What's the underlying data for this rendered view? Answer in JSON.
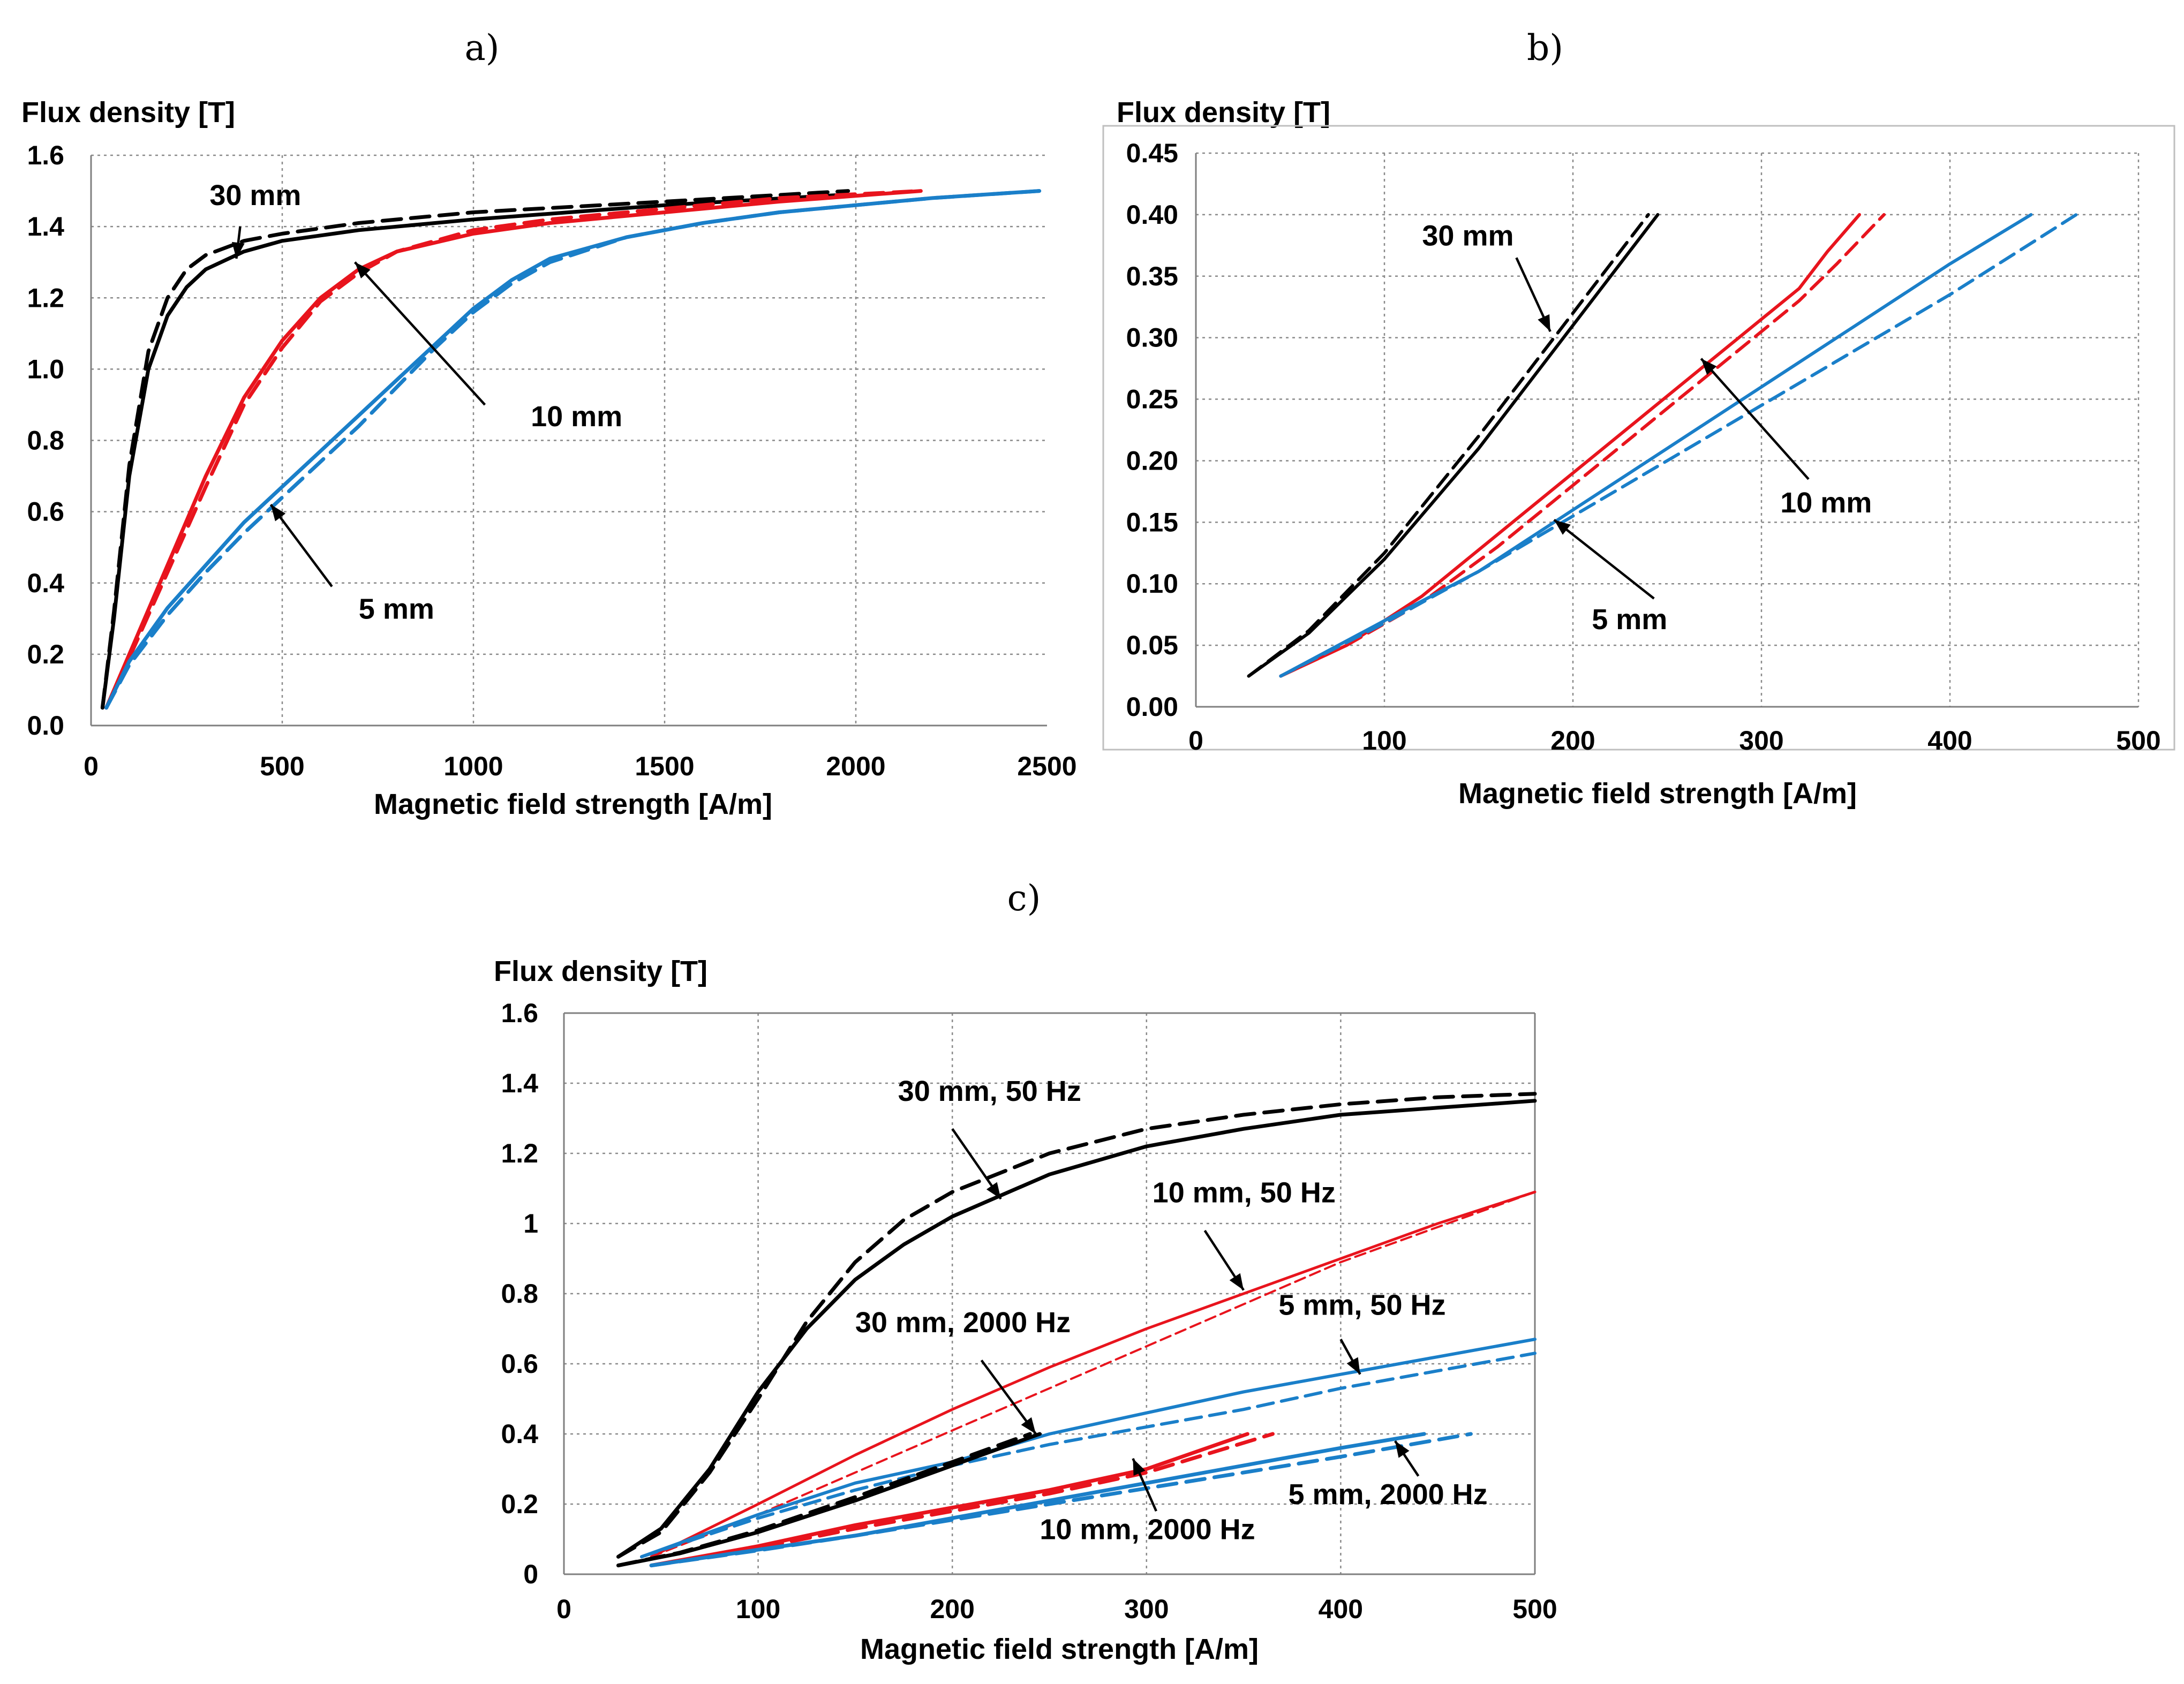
{
  "colors": {
    "black": "#000000",
    "red": "#e8141d",
    "blue": "#1a7fc9"
  },
  "panel_labels": [
    "a)",
    "b)",
    "c)"
  ],
  "chart_data": [
    {
      "type": "line",
      "panel": "a)",
      "ylabel": "Flux density [T]",
      "xlabel": "Magnetic field strength [A/m]",
      "xlim": [
        0,
        2500
      ],
      "ylim": [
        0,
        1.6
      ],
      "xticks": [
        0,
        500,
        1000,
        1500,
        2000,
        2500
      ],
      "xtick_labels": [
        "0",
        "500",
        "1000",
        "1500",
        "2000",
        "2500"
      ],
      "yticks": [
        0,
        0.2,
        0.4,
        0.6,
        0.8,
        1.0,
        1.2,
        1.4,
        1.6
      ],
      "ytick_labels": [
        "0.0",
        "0.2",
        "0.4",
        "0.6",
        "0.8",
        "1.0",
        "1.2",
        "1.4",
        "1.6"
      ],
      "grid": true,
      "series": [
        {
          "name": "30 mm solid",
          "color": "black",
          "dash": "solid",
          "width": 7,
          "x": [
            30,
            60,
            100,
            150,
            200,
            250,
            300,
            400,
            500,
            700,
            1000,
            1500,
            1980
          ],
          "y": [
            0.05,
            0.3,
            0.7,
            1.0,
            1.15,
            1.23,
            1.28,
            1.33,
            1.36,
            1.39,
            1.42,
            1.46,
            1.49
          ]
        },
        {
          "name": "30 mm dashed",
          "color": "black",
          "dash": "dashed",
          "width": 7,
          "x": [
            30,
            60,
            100,
            150,
            200,
            250,
            300,
            400,
            500,
            700,
            1000,
            1500,
            1980
          ],
          "y": [
            0.05,
            0.32,
            0.73,
            1.05,
            1.2,
            1.28,
            1.32,
            1.36,
            1.38,
            1.41,
            1.44,
            1.47,
            1.5
          ]
        },
        {
          "name": "10 mm solid",
          "color": "red",
          "dash": "solid",
          "width": 7,
          "x": [
            40,
            100,
            200,
            300,
            400,
            500,
            600,
            700,
            800,
            1000,
            1200,
            1500,
            1800,
            2170
          ],
          "y": [
            0.05,
            0.2,
            0.45,
            0.7,
            0.92,
            1.08,
            1.2,
            1.28,
            1.33,
            1.38,
            1.41,
            1.44,
            1.47,
            1.5
          ]
        },
        {
          "name": "10 mm dashed",
          "color": "red",
          "dash": "dashed",
          "width": 7,
          "x": [
            40,
            100,
            200,
            300,
            400,
            500,
            600,
            700,
            800,
            1000,
            1200,
            1500,
            1800,
            2170
          ],
          "y": [
            0.05,
            0.19,
            0.43,
            0.67,
            0.9,
            1.06,
            1.19,
            1.27,
            1.33,
            1.39,
            1.42,
            1.45,
            1.48,
            1.5
          ]
        },
        {
          "name": "5 mm solid",
          "color": "blue",
          "dash": "solid",
          "width": 7,
          "x": [
            40,
            100,
            200,
            300,
            400,
            500,
            600,
            700,
            800,
            900,
            1000,
            1100,
            1200,
            1400,
            1600,
            1800,
            2000,
            2200,
            2480
          ],
          "y": [
            0.05,
            0.18,
            0.33,
            0.45,
            0.57,
            0.67,
            0.77,
            0.87,
            0.97,
            1.07,
            1.17,
            1.25,
            1.31,
            1.37,
            1.41,
            1.44,
            1.46,
            1.48,
            1.5
          ]
        },
        {
          "name": "5 mm dashed",
          "color": "blue",
          "dash": "dashed",
          "width": 7,
          "x": [
            40,
            100,
            200,
            300,
            400,
            500,
            600,
            700,
            800,
            900,
            1000,
            1100,
            1200,
            1400,
            1600,
            1800,
            2000,
            2200,
            2480
          ],
          "y": [
            0.05,
            0.17,
            0.31,
            0.43,
            0.54,
            0.64,
            0.74,
            0.84,
            0.95,
            1.06,
            1.16,
            1.24,
            1.3,
            1.37,
            1.41,
            1.44,
            1.46,
            1.48,
            1.5
          ]
        }
      ],
      "annotations": [
        {
          "text": "30 mm",
          "label_x": 310,
          "label_y": 1.46,
          "arrow_from": [
            390,
            1.4
          ],
          "arrow_to": [
            380,
            1.31
          ]
        },
        {
          "text": "10 mm",
          "label_x": 1150,
          "label_y": 0.84,
          "arrow_from": [
            1030,
            0.9
          ],
          "arrow_to": [
            690,
            1.3
          ]
        },
        {
          "text": "5 mm",
          "label_x": 700,
          "label_y": 0.3,
          "arrow_from": [
            630,
            0.39
          ],
          "arrow_to": [
            470,
            0.62
          ]
        }
      ]
    },
    {
      "type": "line",
      "panel": "b)",
      "ylabel": "Flux density [T]",
      "xlabel": "Magnetic field strength [A/m]",
      "xlim": [
        0,
        500
      ],
      "ylim": [
        0,
        0.45
      ],
      "xticks": [
        0,
        100,
        200,
        300,
        400,
        500
      ],
      "xtick_labels": [
        "0",
        "100",
        "200",
        "300",
        "400",
        "500"
      ],
      "yticks": [
        0,
        0.05,
        0.1,
        0.15,
        0.2,
        0.25,
        0.3,
        0.35,
        0.4,
        0.45
      ],
      "ytick_labels": [
        "0.00",
        "0.05",
        "0.10",
        "0.15",
        "0.20",
        "0.25",
        "0.30",
        "0.35",
        "0.40",
        "0.45"
      ],
      "grid": true,
      "series": [
        {
          "name": "30 mm solid",
          "color": "black",
          "dash": "solid",
          "width": 6,
          "x": [
            28,
            60,
            100,
            150,
            200,
            245
          ],
          "y": [
            0.025,
            0.06,
            0.12,
            0.21,
            0.31,
            0.4
          ]
        },
        {
          "name": "30 mm dashed",
          "color": "black",
          "dash": "dashed",
          "width": 6,
          "x": [
            28,
            60,
            100,
            150,
            200,
            240
          ],
          "y": [
            0.025,
            0.062,
            0.125,
            0.22,
            0.32,
            0.4
          ]
        },
        {
          "name": "10 mm solid",
          "color": "red",
          "dash": "solid",
          "width": 6,
          "x": [
            45,
            80,
            120,
            160,
            200,
            240,
            280,
            320,
            335,
            352
          ],
          "y": [
            0.025,
            0.05,
            0.09,
            0.14,
            0.19,
            0.24,
            0.29,
            0.34,
            0.37,
            0.4
          ]
        },
        {
          "name": "10 mm dashed",
          "color": "red",
          "dash": "dashed",
          "width": 6,
          "x": [
            45,
            80,
            120,
            160,
            200,
            240,
            280,
            320,
            340,
            365
          ],
          "y": [
            0.025,
            0.05,
            0.085,
            0.13,
            0.18,
            0.23,
            0.28,
            0.33,
            0.36,
            0.4
          ]
        },
        {
          "name": "5 mm solid",
          "color": "blue",
          "dash": "solid",
          "width": 6,
          "x": [
            45,
            100,
            150,
            200,
            250,
            300,
            350,
            400,
            443
          ],
          "y": [
            0.025,
            0.07,
            0.11,
            0.16,
            0.21,
            0.26,
            0.31,
            0.36,
            0.4
          ]
        },
        {
          "name": "5 mm dashed",
          "color": "blue",
          "dash": "dashed",
          "width": 6,
          "x": [
            45,
            100,
            150,
            200,
            250,
            300,
            350,
            400,
            467
          ],
          "y": [
            0.025,
            0.068,
            0.11,
            0.155,
            0.2,
            0.245,
            0.29,
            0.335,
            0.4
          ]
        }
      ],
      "annotations": [
        {
          "text": "30 mm",
          "label_x": 120,
          "label_y": 0.375,
          "arrow_from": [
            170,
            0.365
          ],
          "arrow_to": [
            188,
            0.305
          ]
        },
        {
          "text": "10 mm",
          "label_x": 310,
          "label_y": 0.158,
          "arrow_from": [
            325,
            0.185
          ],
          "arrow_to": [
            268,
            0.283
          ]
        },
        {
          "text": "5 mm",
          "label_x": 210,
          "label_y": 0.063,
          "arrow_from": [
            243,
            0.088
          ],
          "arrow_to": [
            190,
            0.152
          ]
        }
      ]
    },
    {
      "type": "line",
      "panel": "c)",
      "ylabel": "Flux density [T]",
      "xlabel": "Magnetic field strength [A/m]",
      "xlim": [
        0,
        500
      ],
      "ylim": [
        0,
        1.6
      ],
      "xticks": [
        0,
        100,
        200,
        300,
        400,
        500
      ],
      "xtick_labels": [
        "0",
        "100",
        "200",
        "300",
        "400",
        "500"
      ],
      "yticks": [
        0,
        0.2,
        0.4,
        0.6,
        0.8,
        1.0,
        1.2,
        1.4,
        1.6
      ],
      "ytick_labels": [
        "0",
        "0.2",
        "0.4",
        "0.6",
        "0.8",
        "1",
        "1.2",
        "1.4",
        "1.6"
      ],
      "grid": true,
      "series": [
        {
          "name": "30 mm, 50 Hz solid",
          "color": "black",
          "dash": "solid",
          "width": 7,
          "x": [
            28,
            50,
            75,
            100,
            125,
            150,
            175,
            200,
            250,
            300,
            350,
            400,
            450,
            500
          ],
          "y": [
            0.05,
            0.13,
            0.3,
            0.52,
            0.7,
            0.84,
            0.94,
            1.02,
            1.14,
            1.22,
            1.27,
            1.31,
            1.33,
            1.35
          ]
        },
        {
          "name": "30 mm, 50 Hz dashed",
          "color": "black",
          "dash": "dashed",
          "width": 7,
          "x": [
            28,
            50,
            75,
            100,
            125,
            150,
            175,
            200,
            250,
            300,
            350,
            400,
            450,
            500
          ],
          "y": [
            0.05,
            0.12,
            0.29,
            0.5,
            0.72,
            0.89,
            1.01,
            1.09,
            1.2,
            1.27,
            1.31,
            1.34,
            1.36,
            1.37
          ]
        },
        {
          "name": "10 mm, 50 Hz solid",
          "color": "red",
          "dash": "solid",
          "width": 5,
          "x": [
            45,
            100,
            150,
            200,
            250,
            300,
            350,
            400,
            450,
            500
          ],
          "y": [
            0.05,
            0.2,
            0.34,
            0.47,
            0.59,
            0.7,
            0.8,
            0.9,
            1.0,
            1.09
          ]
        },
        {
          "name": "10 mm, 50 Hz dashed",
          "color": "red",
          "dash": "dashed",
          "width": 4,
          "x": [
            45,
            100,
            150,
            200,
            250,
            300,
            350,
            400,
            450,
            500
          ],
          "y": [
            0.05,
            0.17,
            0.29,
            0.41,
            0.53,
            0.65,
            0.77,
            0.89,
            0.99,
            1.09
          ]
        },
        {
          "name": "5 mm, 50 Hz solid",
          "color": "blue",
          "dash": "solid",
          "width": 6,
          "x": [
            40,
            100,
            150,
            200,
            250,
            300,
            350,
            400,
            450,
            500
          ],
          "y": [
            0.05,
            0.17,
            0.26,
            0.32,
            0.4,
            0.46,
            0.52,
            0.57,
            0.62,
            0.67
          ]
        },
        {
          "name": "5 mm, 50 Hz dashed",
          "color": "blue",
          "dash": "dashed",
          "width": 6,
          "x": [
            40,
            100,
            150,
            200,
            250,
            300,
            350,
            400,
            450,
            500
          ],
          "y": [
            0.05,
            0.16,
            0.24,
            0.31,
            0.37,
            0.42,
            0.47,
            0.53,
            0.58,
            0.63
          ]
        },
        {
          "name": "30 mm, 2000 Hz solid",
          "color": "black",
          "dash": "solid",
          "width": 7,
          "x": [
            28,
            60,
            100,
            150,
            200,
            245
          ],
          "y": [
            0.025,
            0.06,
            0.12,
            0.21,
            0.31,
            0.4
          ]
        },
        {
          "name": "30 mm, 2000 Hz dashed",
          "color": "black",
          "dash": "dashed",
          "width": 7,
          "x": [
            28,
            60,
            100,
            150,
            200,
            240
          ],
          "y": [
            0.025,
            0.062,
            0.125,
            0.22,
            0.32,
            0.4
          ]
        },
        {
          "name": "10 mm, 2000 Hz solid",
          "color": "red",
          "dash": "solid",
          "width": 7,
          "x": [
            45,
            100,
            150,
            200,
            250,
            300,
            352
          ],
          "y": [
            0.025,
            0.08,
            0.14,
            0.19,
            0.24,
            0.3,
            0.4
          ]
        },
        {
          "name": "10 mm, 2000 Hz dashed",
          "color": "red",
          "dash": "dashed",
          "width": 7,
          "x": [
            45,
            100,
            150,
            200,
            250,
            300,
            365
          ],
          "y": [
            0.025,
            0.075,
            0.13,
            0.18,
            0.23,
            0.29,
            0.4
          ]
        },
        {
          "name": "5 mm, 2000 Hz solid",
          "color": "blue",
          "dash": "solid",
          "width": 7,
          "x": [
            45,
            100,
            150,
            200,
            250,
            300,
            350,
            400,
            443
          ],
          "y": [
            0.025,
            0.07,
            0.11,
            0.16,
            0.21,
            0.26,
            0.31,
            0.36,
            0.4
          ]
        },
        {
          "name": "5 mm, 2000 Hz dashed",
          "color": "blue",
          "dash": "dashed",
          "width": 7,
          "x": [
            45,
            100,
            150,
            200,
            250,
            300,
            350,
            400,
            467
          ],
          "y": [
            0.025,
            0.068,
            0.11,
            0.155,
            0.2,
            0.245,
            0.29,
            0.335,
            0.4
          ]
        }
      ],
      "annotations": [
        {
          "text": "30 mm, 50 Hz",
          "label_x": 172,
          "label_y": 1.35,
          "arrow_from": [
            200,
            1.27
          ],
          "arrow_to": [
            225,
            1.07
          ]
        },
        {
          "text": "10 mm, 50 Hz",
          "label_x": 303,
          "label_y": 1.06,
          "arrow_from": [
            330,
            0.98
          ],
          "arrow_to": [
            350,
            0.81
          ]
        },
        {
          "text": "5 mm, 50 Hz",
          "label_x": 368,
          "label_y": 0.74,
          "arrow_from": [
            400,
            0.67
          ],
          "arrow_to": [
            410,
            0.57
          ]
        },
        {
          "text": "30 mm, 2000 Hz",
          "label_x": 150,
          "label_y": 0.69,
          "arrow_from": [
            215,
            0.61
          ],
          "arrow_to": [
            243,
            0.4
          ]
        },
        {
          "text": "10 mm, 2000 Hz",
          "label_x": 245,
          "label_y": 0.1,
          "arrow_from": [
            305,
            0.18
          ],
          "arrow_to": [
            293,
            0.33
          ]
        },
        {
          "text": "5 mm, 2000 Hz",
          "label_x": 373,
          "label_y": 0.2,
          "arrow_from": [
            440,
            0.28
          ],
          "arrow_to": [
            428,
            0.38
          ]
        }
      ]
    }
  ]
}
